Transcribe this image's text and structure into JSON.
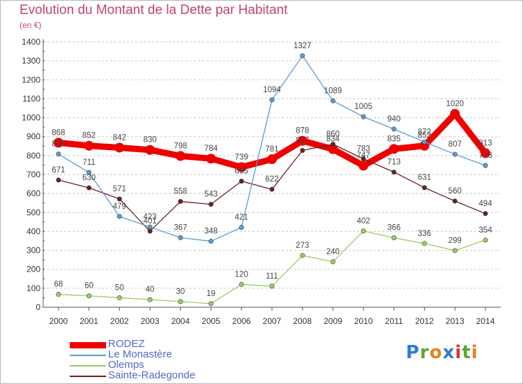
{
  "title": "Evolution du Montant de la Dette par Habitant",
  "unit": "(en €)",
  "logo": {
    "text": "Proxiti",
    "colors": [
      "#2e7bd0",
      "#5aa631",
      "#e8821a",
      "#2e7bd0",
      "#d8342a",
      "#5aa631",
      "#e8821a"
    ]
  },
  "chart_data": {
    "type": "line",
    "title": "Evolution du Montant de la Dette par Habitant",
    "ylabel": "(en €)",
    "xlabel": "",
    "ylim": [
      0,
      1400
    ],
    "yticks": [
      0,
      100,
      200,
      300,
      400,
      500,
      600,
      700,
      800,
      900,
      1000,
      1100,
      1200,
      1300,
      1400
    ],
    "categories": [
      "2000",
      "2001",
      "2002",
      "2003",
      "2004",
      "2005",
      "2006",
      "2007",
      "2008",
      "2009",
      "2010",
      "2011",
      "2012",
      "2013",
      "2014"
    ],
    "grid": "horizontal dashed",
    "legend_position": "bottom-left",
    "series": [
      {
        "name": "RODEZ",
        "color": "#ee0000",
        "values": [
          868,
          852,
          842,
          830,
          798,
          784,
          739,
          781,
          878,
          834,
          747,
          835,
          852,
          1020,
          813
        ]
      },
      {
        "name": "Le Monastère",
        "color": "#5b9bd5",
        "values": [
          808,
          711,
          479,
          423,
          367,
          348,
          421,
          1094,
          1327,
          1089,
          1005,
          940,
          872,
          807,
          748
        ]
      },
      {
        "name": "Olemps",
        "color": "#9ccc65",
        "values": [
          68,
          60,
          50,
          40,
          30,
          19,
          120,
          111,
          273,
          240,
          402,
          366,
          336,
          299,
          354
        ]
      },
      {
        "name": "Sainte-Radegonde",
        "color": "#6b1f1f",
        "values": [
          671,
          630,
          571,
          401,
          558,
          543,
          665,
          622,
          827,
          860,
          783,
          713,
          631,
          560,
          494
        ]
      }
    ]
  }
}
